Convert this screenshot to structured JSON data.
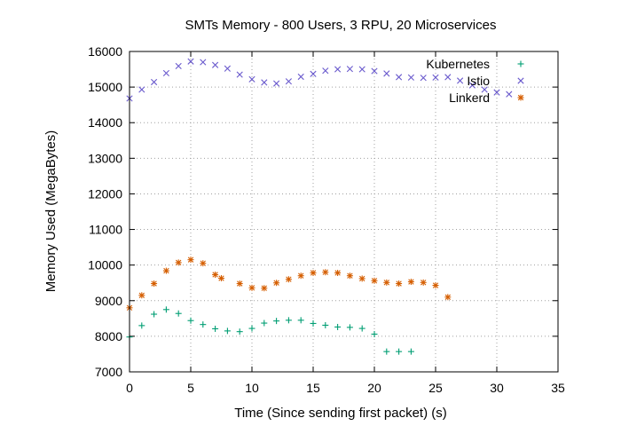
{
  "chart_data": {
    "type": "scatter",
    "title": "SMTs Memory - 800 Users, 3 RPU, 20 Microservices",
    "xlabel": "Time (Since sending first packet) (s)",
    "ylabel": "Memory Used (MegaBytes)",
    "xlim": [
      0,
      35
    ],
    "ylim": [
      7000,
      16000
    ],
    "xticks": [
      "0",
      "5",
      "10",
      "15",
      "20",
      "25",
      "30",
      "35"
    ],
    "yticks": [
      "7000",
      "8000",
      "9000",
      "10000",
      "11000",
      "12000",
      "13000",
      "14000",
      "15000",
      "16000"
    ],
    "grid": true,
    "legend_position": "top-right",
    "series": [
      {
        "name": "Kubernetes",
        "marker": "plus",
        "color": "#009e73",
        "x": [
          0,
          1,
          2,
          3,
          4,
          5,
          6,
          7,
          8,
          9,
          10,
          11,
          12,
          13,
          14,
          15,
          16,
          17,
          18,
          19,
          20,
          21,
          22,
          23
        ],
        "y": [
          7980,
          8300,
          8620,
          8750,
          8640,
          8440,
          8330,
          8210,
          8150,
          8130,
          8220,
          8370,
          8430,
          8450,
          8450,
          8360,
          8310,
          8260,
          8250,
          8220,
          8060,
          7570,
          7570,
          7570
        ]
      },
      {
        "name": "Istio",
        "marker": "cross",
        "color": "#6a5acd",
        "x": [
          0,
          1,
          2,
          3,
          4,
          5,
          6,
          7,
          8,
          9,
          10,
          11,
          12,
          13,
          14,
          15,
          16,
          17,
          18,
          19,
          20,
          21,
          22,
          23,
          24,
          25,
          26,
          27,
          28,
          29,
          30,
          31
        ],
        "y": [
          14680,
          14930,
          15140,
          15390,
          15590,
          15720,
          15700,
          15620,
          15520,
          15350,
          15220,
          15130,
          15100,
          15160,
          15290,
          15370,
          15460,
          15500,
          15510,
          15500,
          15450,
          15380,
          15280,
          15270,
          15260,
          15270,
          15280,
          15180,
          15050,
          14930,
          14850,
          14800
        ]
      },
      {
        "name": "Linkerd",
        "marker": "star",
        "color": "#d55e00",
        "x": [
          0,
          1,
          2,
          3,
          4,
          5,
          6,
          7,
          7.5,
          9,
          10,
          11,
          12,
          13,
          14,
          15,
          16,
          17,
          18,
          19,
          20,
          21,
          22,
          23,
          24,
          25,
          26
        ],
        "y": [
          8800,
          9150,
          9480,
          9840,
          10070,
          10150,
          10050,
          9730,
          9630,
          9480,
          9360,
          9350,
          9500,
          9600,
          9700,
          9780,
          9800,
          9780,
          9700,
          9620,
          9560,
          9510,
          9480,
          9530,
          9510,
          9430,
          9100
        ]
      }
    ]
  }
}
